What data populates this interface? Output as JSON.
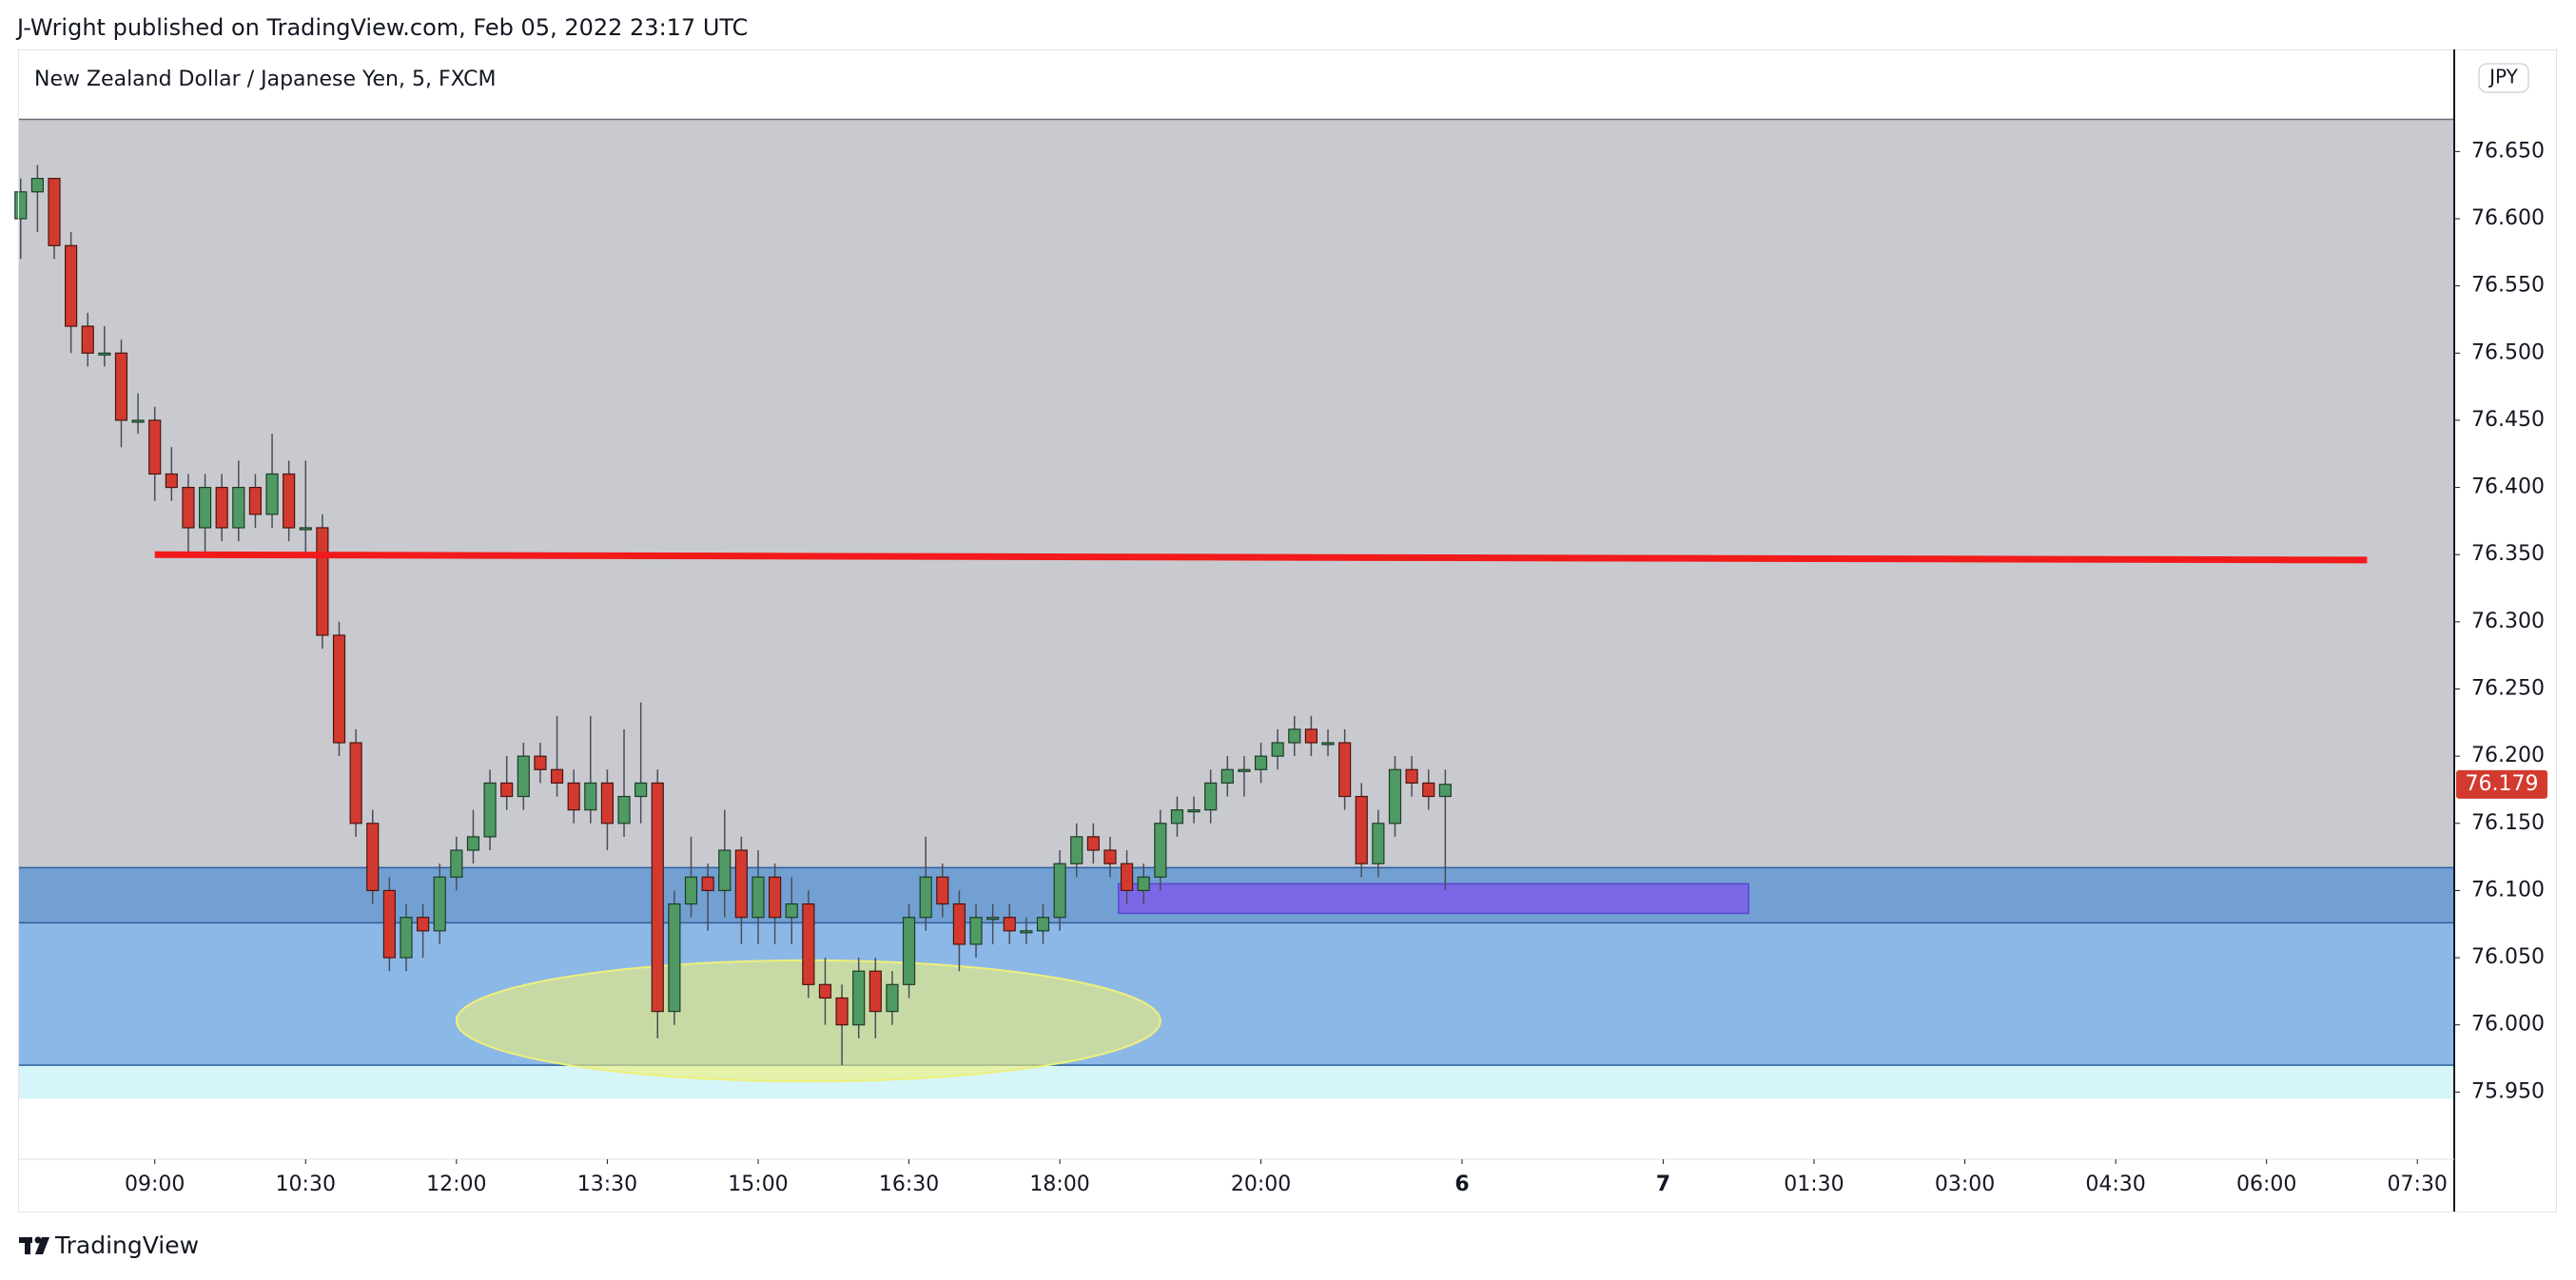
{
  "header_text": "J-Wright published on TradingView.com, Feb 05, 2022 23:17 UTC",
  "brand": "TradingView",
  "chart_data": {
    "type": "candlestick",
    "title": "New Zealand Dollar / Japanese Yen, 5, FXCM",
    "currency": "JPY",
    "up_color": "#4f9a64",
    "down_color": "#d33a2f",
    "xlim": [
      -0.1,
      145.2
    ],
    "ylim": [
      75.9,
      76.726
    ],
    "xticks": [
      {
        "value": 8,
        "label": "09:00"
      },
      {
        "value": 17,
        "label": "10:30"
      },
      {
        "value": 26,
        "label": "12:00"
      },
      {
        "value": 35,
        "label": "13:30"
      },
      {
        "value": 44,
        "label": "15:00"
      },
      {
        "value": 53,
        "label": "16:30"
      },
      {
        "value": 62,
        "label": "18:00"
      },
      {
        "value": 74,
        "label": "20:00"
      },
      {
        "value": 86,
        "label": "6"
      },
      {
        "value": 98,
        "label": "7"
      },
      {
        "value": 107,
        "label": "01:30"
      },
      {
        "value": 116,
        "label": "03:00"
      },
      {
        "value": 125,
        "label": "04:30"
      },
      {
        "value": 134,
        "label": "06:00"
      },
      {
        "value": 143,
        "label": "07:30"
      }
    ],
    "yticks": [
      {
        "value": 75.95,
        "label": "75.950"
      },
      {
        "value": 76,
        "label": "76.000"
      },
      {
        "value": 76.05,
        "label": "76.050"
      },
      {
        "value": 76.1,
        "label": "76.100"
      },
      {
        "value": 76.15,
        "label": "76.150"
      },
      {
        "value": 76.2,
        "label": "76.200"
      },
      {
        "value": 76.25,
        "label": "76.250"
      },
      {
        "value": 76.3,
        "label": "76.300"
      },
      {
        "value": 76.35,
        "label": "76.350"
      },
      {
        "value": 76.4,
        "label": "76.400"
      },
      {
        "value": 76.45,
        "label": "76.450"
      },
      {
        "value": 76.5,
        "label": "76.500"
      },
      {
        "value": 76.55,
        "label": "76.550"
      },
      {
        "value": 76.6,
        "label": "76.600"
      },
      {
        "value": 76.65,
        "label": "76.650"
      }
    ],
    "ohlc": [
      [
        76.6,
        76.63,
        76.57,
        76.62
      ],
      [
        76.62,
        76.64,
        76.59,
        76.63
      ],
      [
        76.63,
        76.63,
        76.57,
        76.58
      ],
      [
        76.58,
        76.59,
        76.5,
        76.52
      ],
      [
        76.52,
        76.53,
        76.49,
        76.5
      ],
      [
        76.5,
        76.52,
        76.49,
        76.5
      ],
      [
        76.5,
        76.51,
        76.43,
        76.45
      ],
      [
        76.45,
        76.47,
        76.44,
        76.45
      ],
      [
        76.45,
        76.46,
        76.39,
        76.41
      ],
      [
        76.41,
        76.43,
        76.39,
        76.4
      ],
      [
        76.4,
        76.41,
        76.35,
        76.37
      ],
      [
        76.37,
        76.41,
        76.35,
        76.4
      ],
      [
        76.4,
        76.41,
        76.36,
        76.37
      ],
      [
        76.37,
        76.42,
        76.36,
        76.4
      ],
      [
        76.4,
        76.41,
        76.37,
        76.38
      ],
      [
        76.38,
        76.44,
        76.37,
        76.41
      ],
      [
        76.41,
        76.42,
        76.36,
        76.37
      ],
      [
        76.37,
        76.42,
        76.35,
        76.37
      ],
      [
        76.37,
        76.38,
        76.28,
        76.29
      ],
      [
        76.29,
        76.3,
        76.2,
        76.21
      ],
      [
        76.21,
        76.22,
        76.14,
        76.15
      ],
      [
        76.15,
        76.16,
        76.09,
        76.1
      ],
      [
        76.1,
        76.11,
        76.04,
        76.05
      ],
      [
        76.05,
        76.09,
        76.04,
        76.08
      ],
      [
        76.08,
        76.09,
        76.05,
        76.07
      ],
      [
        76.07,
        76.12,
        76.06,
        76.11
      ],
      [
        76.11,
        76.14,
        76.1,
        76.13
      ],
      [
        76.13,
        76.16,
        76.12,
        76.14
      ],
      [
        76.14,
        76.19,
        76.13,
        76.18
      ],
      [
        76.18,
        76.2,
        76.16,
        76.17
      ],
      [
        76.17,
        76.21,
        76.16,
        76.2
      ],
      [
        76.2,
        76.21,
        76.18,
        76.19
      ],
      [
        76.19,
        76.23,
        76.17,
        76.18
      ],
      [
        76.18,
        76.19,
        76.15,
        76.16
      ],
      [
        76.16,
        76.23,
        76.15,
        76.18
      ],
      [
        76.18,
        76.19,
        76.13,
        76.15
      ],
      [
        76.15,
        76.22,
        76.14,
        76.17
      ],
      [
        76.17,
        76.24,
        76.15,
        76.18
      ],
      [
        76.18,
        76.19,
        75.99,
        76.01
      ],
      [
        76.01,
        76.1,
        76.0,
        76.09
      ],
      [
        76.09,
        76.14,
        76.08,
        76.11
      ],
      [
        76.11,
        76.12,
        76.07,
        76.1
      ],
      [
        76.1,
        76.16,
        76.08,
        76.13
      ],
      [
        76.13,
        76.14,
        76.06,
        76.08
      ],
      [
        76.08,
        76.13,
        76.06,
        76.11
      ],
      [
        76.11,
        76.12,
        76.06,
        76.08
      ],
      [
        76.08,
        76.11,
        76.06,
        76.09
      ],
      [
        76.09,
        76.1,
        76.02,
        76.03
      ],
      [
        76.03,
        76.05,
        76.0,
        76.02
      ],
      [
        76.02,
        76.03,
        75.97,
        76.0
      ],
      [
        76.0,
        76.05,
        75.99,
        76.04
      ],
      [
        76.04,
        76.05,
        75.99,
        76.01
      ],
      [
        76.01,
        76.04,
        76.0,
        76.03
      ],
      [
        76.03,
        76.09,
        76.02,
        76.08
      ],
      [
        76.08,
        76.14,
        76.07,
        76.11
      ],
      [
        76.11,
        76.12,
        76.08,
        76.09
      ],
      [
        76.09,
        76.1,
        76.04,
        76.06
      ],
      [
        76.06,
        76.09,
        76.05,
        76.08
      ],
      [
        76.08,
        76.09,
        76.06,
        76.08
      ],
      [
        76.08,
        76.09,
        76.06,
        76.07
      ],
      [
        76.07,
        76.08,
        76.06,
        76.07
      ],
      [
        76.07,
        76.09,
        76.06,
        76.08
      ],
      [
        76.08,
        76.13,
        76.07,
        76.12
      ],
      [
        76.12,
        76.15,
        76.11,
        76.14
      ],
      [
        76.14,
        76.15,
        76.12,
        76.13
      ],
      [
        76.13,
        76.14,
        76.11,
        76.12
      ],
      [
        76.12,
        76.13,
        76.09,
        76.1
      ],
      [
        76.1,
        76.12,
        76.09,
        76.11
      ],
      [
        76.11,
        76.16,
        76.1,
        76.15
      ],
      [
        76.15,
        76.17,
        76.14,
        76.16
      ],
      [
        76.16,
        76.17,
        76.15,
        76.16
      ],
      [
        76.16,
        76.19,
        76.15,
        76.18
      ],
      [
        76.18,
        76.2,
        76.17,
        76.19
      ],
      [
        76.19,
        76.2,
        76.17,
        76.19
      ],
      [
        76.19,
        76.21,
        76.18,
        76.2
      ],
      [
        76.2,
        76.22,
        76.19,
        76.21
      ],
      [
        76.21,
        76.23,
        76.2,
        76.22
      ],
      [
        76.22,
        76.23,
        76.2,
        76.21
      ],
      [
        76.21,
        76.22,
        76.2,
        76.21
      ],
      [
        76.21,
        76.22,
        76.16,
        76.17
      ],
      [
        76.17,
        76.18,
        76.11,
        76.12
      ],
      [
        76.12,
        76.16,
        76.11,
        76.15
      ],
      [
        76.15,
        76.2,
        76.14,
        76.19
      ],
      [
        76.19,
        76.2,
        76.17,
        76.18
      ],
      [
        76.18,
        76.19,
        76.16,
        76.17
      ],
      [
        76.17,
        76.19,
        76.1,
        76.179
      ]
    ],
    "zones": [
      {
        "top": 76.674,
        "bottom": 76.117,
        "color": "#c9cad0"
      },
      {
        "top": 76.117,
        "bottom": 76.076,
        "color": "#72a0d2"
      },
      {
        "top": 76.076,
        "bottom": 75.97,
        "color": "#8cb8e8"
      },
      {
        "top": 75.97,
        "bottom": 75.945,
        "color": "#d6f5f8"
      }
    ],
    "trend_line": {
      "x": [
        8,
        140
      ],
      "y": [
        76.35,
        76.346
      ],
      "color": "#f21a1a"
    },
    "box": {
      "x": [
        65.5,
        103.1
      ],
      "y": [
        76.105,
        76.083
      ],
      "color": "#7b68e6"
    },
    "ellipse": {
      "cx": 47,
      "cy": 76.003,
      "rx": 21,
      "ry": 0.045,
      "color": "#eef07a"
    }
  }
}
